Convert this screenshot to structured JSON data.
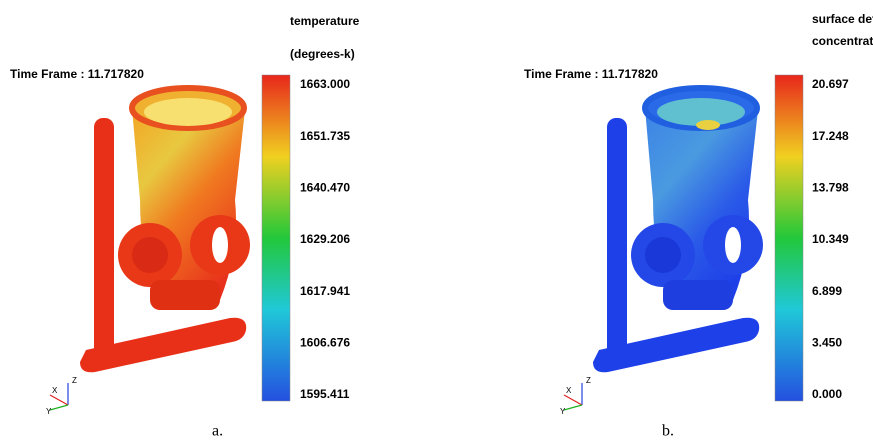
{
  "panels": [
    {
      "time_frame": "Time Frame : 11.717820",
      "legend_title": [
        "temperature",
        "(degrees-k)"
      ],
      "legend_ticks": [
        "1663.000",
        "1651.735",
        "1640.470",
        "1629.206",
        "1617.941",
        "1606.676",
        "1595.411"
      ],
      "axes": [
        "Z",
        "X",
        "Y"
      ],
      "caption": "a."
    },
    {
      "time_frame": "Time Frame : 11.717820",
      "legend_title": [
        "surface defect",
        "concentration"
      ],
      "legend_ticks": [
        "20.697",
        "17.248",
        "13.798",
        "10.349",
        "6.899",
        "3.450",
        "0.000"
      ],
      "axes": [
        "Z",
        "X",
        "Y"
      ],
      "caption": "b."
    }
  ]
}
